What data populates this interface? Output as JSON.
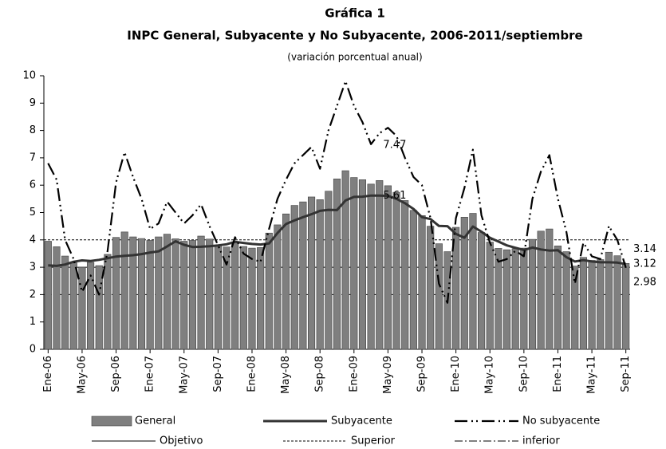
{
  "chart_data": {
    "type": "bar-line",
    "title": "Gráfica 1",
    "subtitle": "INPC General, Subyacente y No Subyacente, 2006-2011/septiembre",
    "note": "(variación porcentual anual)",
    "categories": [
      "Ene-06",
      null,
      null,
      null,
      "May-06",
      null,
      null,
      null,
      "Sep-06",
      null,
      null,
      null,
      "Ene-07",
      null,
      null,
      null,
      "May-07",
      null,
      null,
      null,
      "Sep-07",
      null,
      null,
      null,
      "Ene-08",
      null,
      null,
      null,
      "May-08",
      null,
      null,
      null,
      "Sep-08",
      null,
      null,
      null,
      "Ene-09",
      null,
      null,
      null,
      "May-09",
      null,
      null,
      null,
      "Sep-09",
      null,
      null,
      null,
      "Ene-10",
      null,
      null,
      null,
      "May-10",
      null,
      null,
      null,
      "Sep-10",
      null,
      null,
      null,
      "Ene-11",
      null,
      null,
      null,
      "May-11",
      null,
      null,
      null,
      "Sep-11"
    ],
    "series": [
      {
        "name": "General",
        "style": "bar",
        "color": "#7f7f7f",
        "values": [
          3.95,
          3.75,
          3.41,
          3.2,
          3.0,
          3.18,
          3.06,
          3.47,
          4.09,
          4.29,
          4.11,
          4.05,
          3.98,
          4.11,
          4.21,
          4.04,
          3.95,
          3.98,
          4.14,
          4.03,
          3.79,
          3.74,
          3.93,
          3.76,
          3.7,
          3.72,
          4.25,
          4.55,
          4.95,
          5.26,
          5.39,
          5.57,
          5.47,
          5.78,
          6.23,
          6.53,
          6.28,
          6.2,
          6.04,
          6.17,
          5.98,
          5.74,
          5.44,
          5.08,
          4.89,
          4.5,
          3.86,
          3.57,
          4.46,
          4.83,
          4.97,
          4.27,
          3.92,
          3.69,
          3.64,
          3.68,
          3.7,
          4.02,
          4.32,
          4.4,
          3.78,
          3.57,
          3.04,
          3.36,
          3.25,
          3.28,
          3.55,
          3.42,
          3.14
        ]
      },
      {
        "name": "Subyacente",
        "style": "line",
        "color": "#333333",
        "width": 3,
        "dash": "none",
        "values": [
          3.07,
          3.05,
          3.1,
          3.2,
          3.25,
          3.23,
          3.27,
          3.33,
          3.39,
          3.42,
          3.44,
          3.48,
          3.54,
          3.58,
          3.76,
          3.95,
          3.82,
          3.74,
          3.75,
          3.77,
          3.8,
          3.84,
          3.93,
          3.89,
          3.85,
          3.83,
          3.87,
          4.25,
          4.58,
          4.71,
          4.83,
          4.94,
          5.06,
          5.1,
          5.09,
          5.44,
          5.57,
          5.58,
          5.62,
          5.62,
          5.61,
          5.5,
          5.34,
          5.13,
          4.83,
          4.76,
          4.51,
          4.5,
          4.22,
          4.08,
          4.49,
          4.3,
          4.08,
          3.94,
          3.8,
          3.71,
          3.63,
          3.72,
          3.65,
          3.61,
          3.62,
          3.37,
          3.21,
          3.26,
          3.21,
          3.18,
          3.18,
          3.17,
          3.12
        ]
      },
      {
        "name": "No subyacente",
        "style": "line",
        "color": "#000000",
        "width": 2.2,
        "dash": "16 5 2 4 2 5",
        "values": [
          6.8,
          6.2,
          4.0,
          3.3,
          2.1,
          2.7,
          2.0,
          3.6,
          6.1,
          7.2,
          6.3,
          5.5,
          4.4,
          4.6,
          5.4,
          5.0,
          4.6,
          4.9,
          5.3,
          4.5,
          3.8,
          3.1,
          4.1,
          3.5,
          3.3,
          3.2,
          4.4,
          5.5,
          6.2,
          6.8,
          7.1,
          7.4,
          6.6,
          8.0,
          8.9,
          9.8,
          8.9,
          8.3,
          7.5,
          7.9,
          8.1,
          7.8,
          7.0,
          6.3,
          6.0,
          4.8,
          2.4,
          1.7,
          4.8,
          5.9,
          7.3,
          4.9,
          3.9,
          3.2,
          3.3,
          3.6,
          3.4,
          5.5,
          6.5,
          7.1,
          5.5,
          4.3,
          2.4,
          3.9,
          3.4,
          3.3,
          4.5,
          4.0,
          2.98
        ]
      }
    ],
    "reference_lines": [
      {
        "name": "Objetivo",
        "value": 3,
        "color": "#000000",
        "dash": "none"
      },
      {
        "name": "Superior",
        "value": 4,
        "color": "#000000",
        "dash": "3 2"
      },
      {
        "name": "inferior",
        "value": 2,
        "color": "#000000",
        "dash": "10 3 2 3"
      }
    ],
    "annotations": [
      {
        "text": "7.47",
        "value": 7.47
      },
      {
        "text": "5.61",
        "value": 5.61
      }
    ],
    "end_labels": [
      {
        "text": "3.14",
        "value": 3.14
      },
      {
        "text": "3.12",
        "value": 3.12
      },
      {
        "text": "2.98",
        "value": 2.98
      }
    ],
    "ylim": [
      0,
      10
    ],
    "yticks": [
      0,
      1,
      2,
      3,
      4,
      5,
      6,
      7,
      8,
      9,
      10
    ]
  }
}
